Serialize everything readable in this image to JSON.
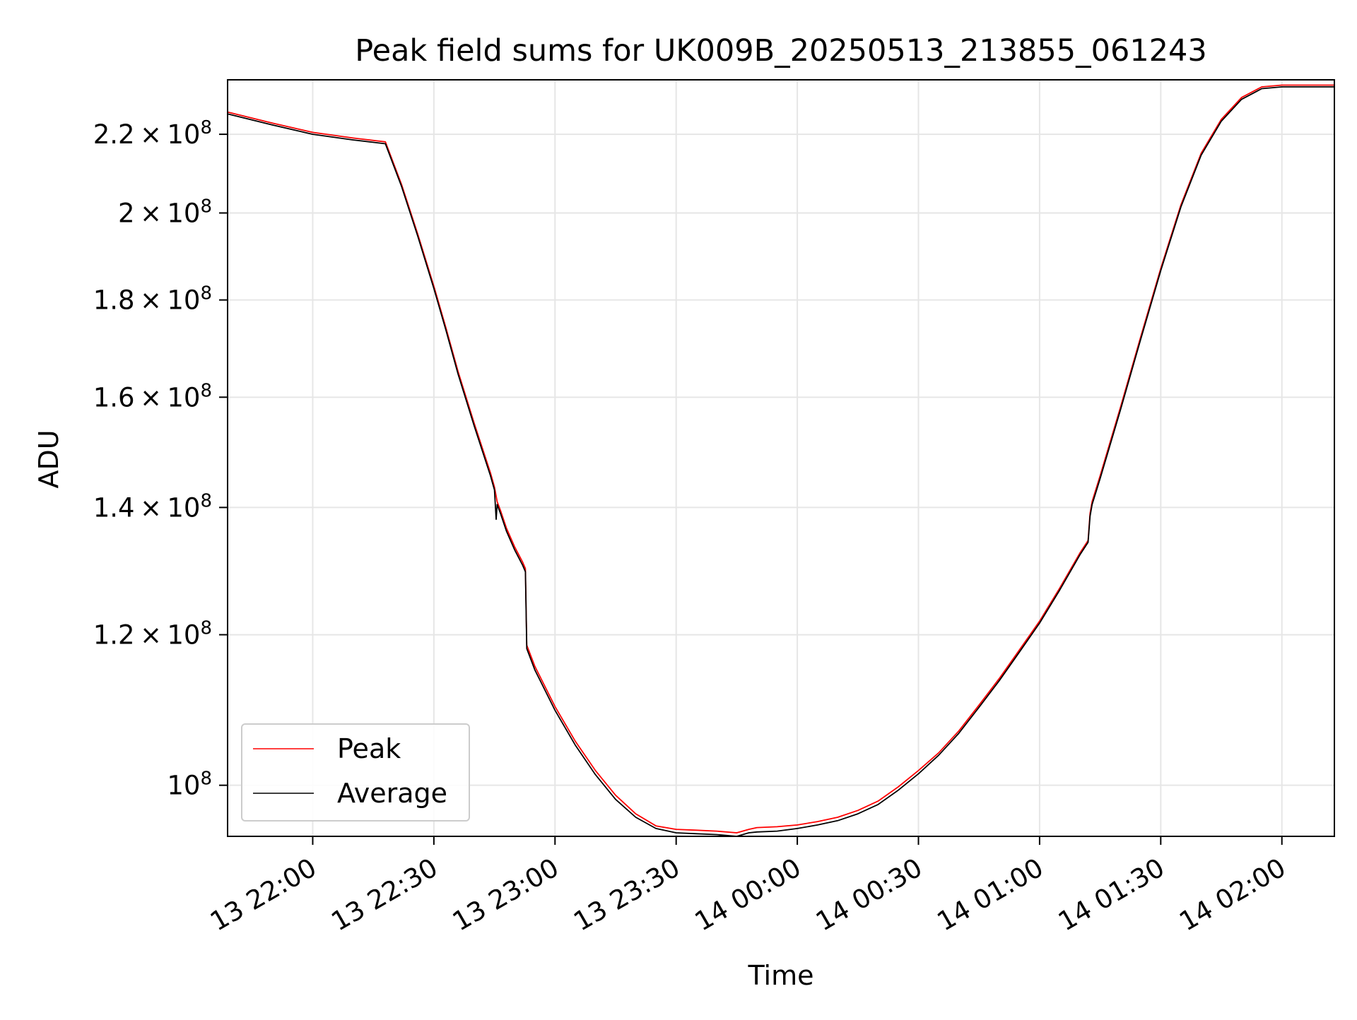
{
  "chart_data": {
    "type": "line",
    "title": "Peak field sums for UK009B_20250513_213855_061243",
    "xlabel": "Time",
    "ylabel": "ADU",
    "yscale": "log",
    "ylim": [
      94000000,
      235000000
    ],
    "xlim": [
      "2025-05-13T21:38:55",
      "2025-05-14T02:13:00"
    ],
    "grid": true,
    "legend_position": "lower-left",
    "x_ticks": [
      {
        "t": "2025-05-13T22:00:00",
        "label": "13 22:00"
      },
      {
        "t": "2025-05-13T22:30:00",
        "label": "13 22:30"
      },
      {
        "t": "2025-05-13T23:00:00",
        "label": "13 23:00"
      },
      {
        "t": "2025-05-13T23:30:00",
        "label": "13 23:30"
      },
      {
        "t": "2025-05-14T00:00:00",
        "label": "14 00:00"
      },
      {
        "t": "2025-05-14T00:30:00",
        "label": "14 00:30"
      },
      {
        "t": "2025-05-14T01:00:00",
        "label": "14 01:00"
      },
      {
        "t": "2025-05-14T01:30:00",
        "label": "14 01:30"
      },
      {
        "t": "2025-05-14T02:00:00",
        "label": "14 02:00"
      }
    ],
    "y_ticks": [
      {
        "v": 100000000,
        "mant": "",
        "exp": "8"
      },
      {
        "v": 120000000,
        "mant": "1.2",
        "exp": "8"
      },
      {
        "v": 140000000,
        "mant": "1.4",
        "exp": "8"
      },
      {
        "v": 160000000,
        "mant": "1.6",
        "exp": "8"
      },
      {
        "v": 180000000,
        "mant": "1.8",
        "exp": "8"
      },
      {
        "v": 200000000,
        "mant": "2",
        "exp": "8"
      },
      {
        "v": 220000000,
        "mant": "2.2",
        "exp": "8"
      }
    ],
    "series": [
      {
        "name": "Peak",
        "color": "#ff0000",
        "x": [
          "2025-05-13T21:38:55",
          "2025-05-13T21:50:00",
          "2025-05-13T22:00:00",
          "2025-05-13T22:10:00",
          "2025-05-13T22:18:00",
          "2025-05-13T22:22:00",
          "2025-05-13T22:26:00",
          "2025-05-13T22:30:00",
          "2025-05-13T22:33:00",
          "2025-05-13T22:36:00",
          "2025-05-13T22:40:00",
          "2025-05-13T22:44:00",
          "2025-05-13T22:45:00",
          "2025-05-13T22:45:40",
          "2025-05-13T22:46:30",
          "2025-05-13T22:48:00",
          "2025-05-13T22:50:00",
          "2025-05-13T22:52:00",
          "2025-05-13T22:52:40",
          "2025-05-13T22:53:00",
          "2025-05-13T22:55:00",
          "2025-05-13T23:00:00",
          "2025-05-13T23:05:00",
          "2025-05-13T23:10:00",
          "2025-05-13T23:15:00",
          "2025-05-13T23:20:00",
          "2025-05-13T23:25:00",
          "2025-05-13T23:30:00",
          "2025-05-13T23:35:00",
          "2025-05-13T23:40:00",
          "2025-05-13T23:45:00",
          "2025-05-13T23:48:00",
          "2025-05-13T23:50:00",
          "2025-05-13T23:55:00",
          "2025-05-14T00:00:00",
          "2025-05-14T00:05:00",
          "2025-05-14T00:10:00",
          "2025-05-14T00:15:00",
          "2025-05-14T00:20:00",
          "2025-05-14T00:25:00",
          "2025-05-14T00:30:00",
          "2025-05-14T00:35:00",
          "2025-05-14T00:40:00",
          "2025-05-14T00:45:00",
          "2025-05-14T00:50:00",
          "2025-05-14T00:55:00",
          "2025-05-14T01:00:00",
          "2025-05-14T01:05:00",
          "2025-05-14T01:10:00",
          "2025-05-14T01:12:00",
          "2025-05-14T01:12:30",
          "2025-05-14T01:13:00",
          "2025-05-14T01:15:00",
          "2025-05-14T01:20:00",
          "2025-05-14T01:25:00",
          "2025-05-14T01:30:00",
          "2025-05-14T01:35:00",
          "2025-05-14T01:40:00",
          "2025-05-14T01:45:00",
          "2025-05-14T01:50:00",
          "2025-05-14T01:55:00",
          "2025-05-14T02:00:00",
          "2025-05-14T02:13:00"
        ],
        "y": [
          226000000,
          223000000,
          220500000,
          219000000,
          218000000,
          207000000,
          195000000,
          183000000,
          174000000,
          165000000,
          155000000,
          146000000,
          143500000,
          141000000,
          139500000,
          136500000,
          133500000,
          131000000,
          130000000,
          118500000,
          115500000,
          110000000,
          105500000,
          101800000,
          98800000,
          96600000,
          95200000,
          94800000,
          94700000,
          94600000,
          94400000,
          94800000,
          95000000,
          95100000,
          95300000,
          95700000,
          96200000,
          97000000,
          98100000,
          99800000,
          101800000,
          104000000,
          106800000,
          110200000,
          113800000,
          117800000,
          122000000,
          127000000,
          132500000,
          134500000,
          139000000,
          141000000,
          145500000,
          158000000,
          172000000,
          187000000,
          202000000,
          215000000,
          224000000,
          230000000,
          233000000,
          233500000,
          233500000
        ]
      },
      {
        "name": "Average",
        "color": "#000000",
        "x": [
          "2025-05-13T21:38:55",
          "2025-05-13T21:50:00",
          "2025-05-13T22:00:00",
          "2025-05-13T22:10:00",
          "2025-05-13T22:18:00",
          "2025-05-13T22:22:00",
          "2025-05-13T22:26:00",
          "2025-05-13T22:30:00",
          "2025-05-13T22:33:00",
          "2025-05-13T22:36:00",
          "2025-05-13T22:40:00",
          "2025-05-13T22:44:00",
          "2025-05-13T22:45:00",
          "2025-05-13T22:45:25",
          "2025-05-13T22:45:40",
          "2025-05-13T22:46:30",
          "2025-05-13T22:48:00",
          "2025-05-13T22:50:00",
          "2025-05-13T22:52:00",
          "2025-05-13T22:52:40",
          "2025-05-13T22:53:00",
          "2025-05-13T22:55:00",
          "2025-05-13T23:00:00",
          "2025-05-13T23:05:00",
          "2025-05-13T23:10:00",
          "2025-05-13T23:15:00",
          "2025-05-13T23:20:00",
          "2025-05-13T23:25:00",
          "2025-05-13T23:30:00",
          "2025-05-13T23:35:00",
          "2025-05-13T23:40:00",
          "2025-05-13T23:45:00",
          "2025-05-13T23:48:00",
          "2025-05-13T23:50:00",
          "2025-05-13T23:55:00",
          "2025-05-14T00:00:00",
          "2025-05-14T00:05:00",
          "2025-05-14T00:10:00",
          "2025-05-14T00:15:00",
          "2025-05-14T00:20:00",
          "2025-05-14T00:25:00",
          "2025-05-14T00:30:00",
          "2025-05-14T00:35:00",
          "2025-05-14T00:40:00",
          "2025-05-14T00:45:00",
          "2025-05-14T00:50:00",
          "2025-05-14T00:55:00",
          "2025-05-14T01:00:00",
          "2025-05-14T01:05:00",
          "2025-05-14T01:10:00",
          "2025-05-14T01:12:00",
          "2025-05-14T01:12:30",
          "2025-05-14T01:13:00",
          "2025-05-14T01:15:00",
          "2025-05-14T01:20:00",
          "2025-05-14T01:25:00",
          "2025-05-14T01:30:00",
          "2025-05-14T01:35:00",
          "2025-05-14T01:40:00",
          "2025-05-14T01:45:00",
          "2025-05-14T01:50:00",
          "2025-05-14T01:55:00",
          "2025-05-14T02:00:00",
          "2025-05-14T02:13:00"
        ],
        "y": [
          225500000,
          222500000,
          220000000,
          218500000,
          217500000,
          206500000,
          194500000,
          182500000,
          173500000,
          164500000,
          154500000,
          145500000,
          143000000,
          138000000,
          140500000,
          139000000,
          136000000,
          133000000,
          130500000,
          129500000,
          118000000,
          115000000,
          109500000,
          105000000,
          101300000,
          98300000,
          96200000,
          94900000,
          94400000,
          94300000,
          94200000,
          94000000,
          94400000,
          94500000,
          94600000,
          94900000,
          95300000,
          95800000,
          96600000,
          97700000,
          99400000,
          101400000,
          103700000,
          106500000,
          109900000,
          113500000,
          117500000,
          121700000,
          126700000,
          132200000,
          134200000,
          138500000,
          140500000,
          145000000,
          157500000,
          171500000,
          186500000,
          201500000,
          214500000,
          223500000,
          229500000,
          232500000,
          233000000,
          233000000
        ]
      }
    ]
  }
}
